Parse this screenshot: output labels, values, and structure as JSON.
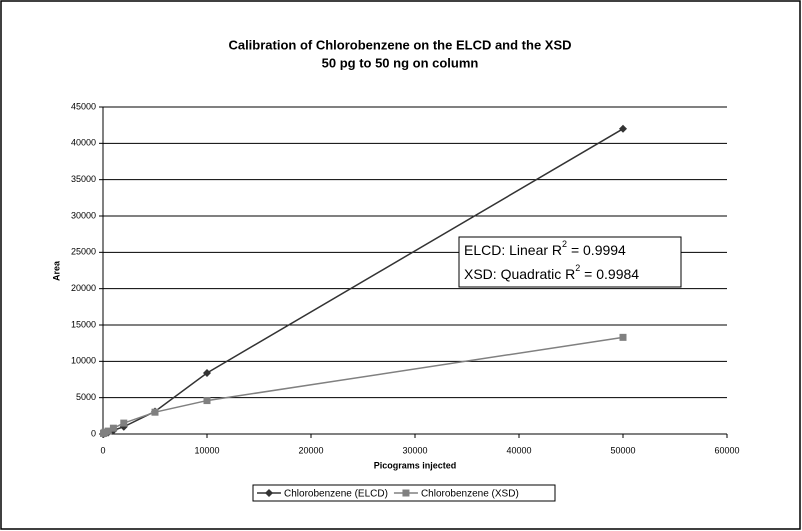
{
  "chart_data": {
    "type": "line",
    "title": [
      "Calibration of Chlorobenzene on the ELCD and the XSD",
      "50 pg to 50 ng on column"
    ],
    "x_label": "Picograms injected",
    "y_label": "Area",
    "x": [
      50,
      100,
      200,
      500,
      1000,
      2000,
      5000,
      10000,
      50000
    ],
    "series": [
      {
        "name": "Chlorobenzene (ELCD)",
        "color": "#333333",
        "marker": "diamond",
        "values": [
          20,
          50,
          100,
          200,
          500,
          1000,
          3100,
          8400,
          42000
        ]
      },
      {
        "name": "Chlorobenzene (XSD)",
        "color": "#808080",
        "marker": "square",
        "values": [
          80,
          150,
          250,
          400,
          800,
          1500,
          3000,
          4600,
          13300
        ]
      }
    ],
    "xlim": [
      0,
      60000
    ],
    "xticks": [
      0,
      10000,
      20000,
      30000,
      40000,
      50000,
      60000
    ],
    "ylim": [
      0,
      45000
    ],
    "yticks": [
      0,
      5000,
      10000,
      15000,
      20000,
      25000,
      30000,
      35000,
      40000,
      45000
    ],
    "grid": true,
    "legend": "bottom",
    "annotations": [
      {
        "prefix": "ELCD: Linear R",
        "sup": "2",
        "suffix": " = 0.9994"
      },
      {
        "prefix": "XSD: Quadratic R",
        "sup": "2",
        "suffix": " = 0.9984"
      }
    ]
  }
}
